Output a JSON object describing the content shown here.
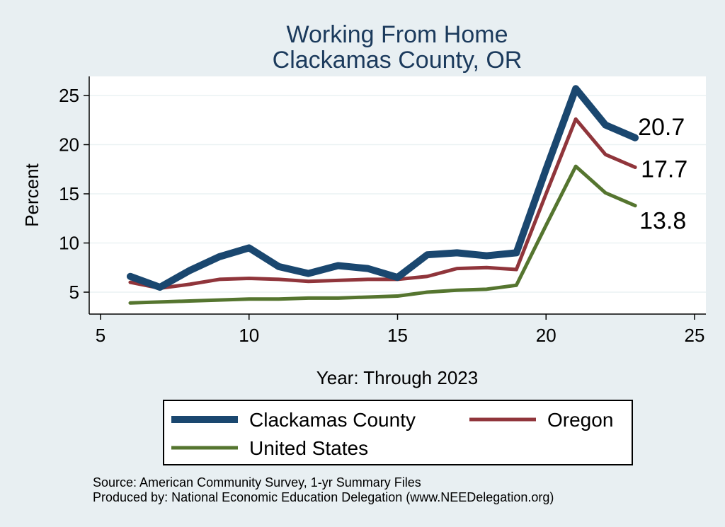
{
  "chart_data": {
    "type": "line",
    "title": [
      "Working From Home",
      "Clackamas County, OR"
    ],
    "xlabel": "Year: Through 2023",
    "ylabel": "Percent",
    "xlim": [
      5,
      25
    ],
    "ylim": [
      2.5,
      27.5
    ],
    "xticks": [
      5,
      10,
      15,
      20,
      25
    ],
    "yticks": [
      5,
      10,
      15,
      20,
      25
    ],
    "grid": true,
    "legend_position": "bottom",
    "series": [
      {
        "name": "Clackamas County",
        "color": "#1a476f",
        "end_label": "20.7",
        "x": [
          6,
          7,
          8,
          9,
          10,
          11,
          12,
          13,
          14,
          15,
          16,
          17,
          18,
          19,
          20,
          21,
          22,
          23
        ],
        "y": [
          6.6,
          5.5,
          7.2,
          8.6,
          9.5,
          7.6,
          6.9,
          7.7,
          7.4,
          6.5,
          8.8,
          9.0,
          8.7,
          9.0,
          17.5,
          25.7,
          22.0,
          20.7
        ]
      },
      {
        "name": "Oregon",
        "color": "#90353b",
        "end_label": "17.7",
        "x": [
          6,
          7,
          8,
          9,
          10,
          11,
          12,
          13,
          14,
          15,
          16,
          17,
          18,
          19,
          20,
          21,
          22,
          23
        ],
        "y": [
          6.0,
          5.4,
          5.8,
          6.3,
          6.4,
          6.3,
          6.1,
          6.2,
          6.3,
          6.3,
          6.6,
          7.4,
          7.5,
          7.3,
          15.0,
          22.6,
          19.0,
          17.7
        ]
      },
      {
        "name": "United States",
        "color": "#55752f",
        "end_label": "13.8",
        "x": [
          6,
          7,
          8,
          9,
          10,
          11,
          12,
          13,
          14,
          15,
          16,
          17,
          18,
          19,
          20,
          21,
          22,
          23
        ],
        "y": [
          3.9,
          4.0,
          4.1,
          4.2,
          4.3,
          4.3,
          4.4,
          4.4,
          4.5,
          4.6,
          5.0,
          5.2,
          5.3,
          5.7,
          11.8,
          17.8,
          15.1,
          13.8
        ]
      }
    ]
  },
  "notes": {
    "source": "Source: American Community Survey, 1-yr Summary Files",
    "produced_by": "Produced by: National Economic Education Delegation (www.NEEDelegation.org)"
  }
}
